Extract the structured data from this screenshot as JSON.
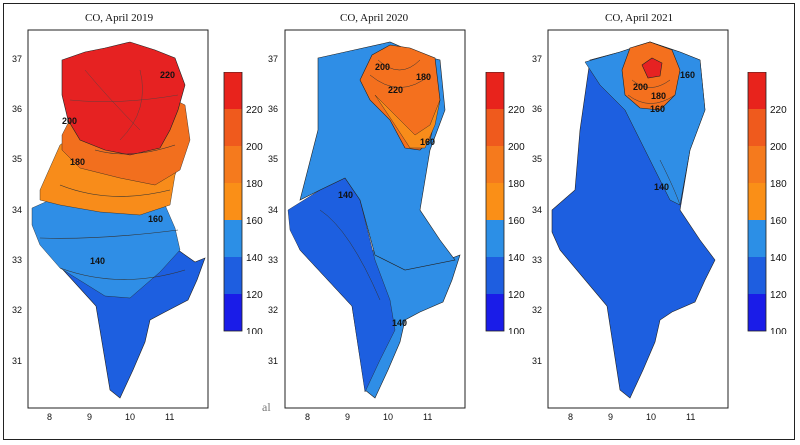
{
  "panels": [
    {
      "title": "CO, April 2019",
      "contour_labels": [
        "220",
        "200",
        "180",
        "160",
        "140",
        "200"
      ],
      "region_colors": {
        "north": "#e62222",
        "mid": "#f26f1e",
        "center": "#f88c1a",
        "west": "#2f8ee6",
        "south": "#1d5fe0"
      }
    },
    {
      "title": "CO, April 2020",
      "contour_labels": [
        "180",
        "200",
        "220",
        "160",
        "140",
        "140"
      ],
      "region_colors": {
        "north": "#f4701e",
        "mid": "#2f8ee6",
        "south": "#1d5fe0"
      }
    },
    {
      "title": "CO, April 2021",
      "contour_labels": [
        "200",
        "180",
        "160",
        "140",
        "160"
      ],
      "region_colors": {
        "north": "#e62222",
        "mid": "#2f8ee6",
        "south": "#1d5fe0"
      }
    }
  ],
  "axes": {
    "y_ticks": [
      "37",
      "36",
      "35",
      "34",
      "33",
      "32",
      "31"
    ],
    "x_ticks": [
      "8",
      "9",
      "10",
      "11"
    ]
  },
  "colorbar": {
    "ticks": [
      "220",
      "200",
      "180",
      "160",
      "140",
      "120",
      "100"
    ],
    "colors": [
      "#e8231c",
      "#ef5a1d",
      "#f57a1d",
      "#fa8f17",
      "#2c8fe6",
      "#1e5ee0",
      "#1a1ce8"
    ]
  },
  "artifact_text": "al"
}
